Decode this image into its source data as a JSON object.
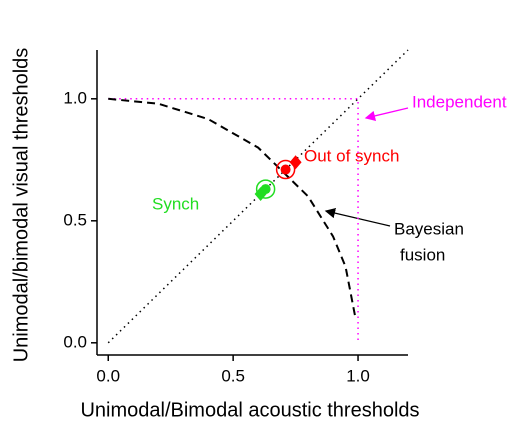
{
  "chart_data": {
    "type": "scatter",
    "xlabel": "Unimodal/Bimodal acoustic thresholds",
    "ylabel": "Unimodal/bimodal visual thresholds",
    "xlim": [
      -0.045,
      1.2
    ],
    "ylim": [
      -0.05,
      1.2
    ],
    "xticks": [
      {
        "value": 0,
        "label": "0.0"
      },
      {
        "value": 0.5,
        "label": "0.5"
      },
      {
        "value": 1,
        "label": "1.0"
      }
    ],
    "yticks": [
      {
        "value": 0,
        "label": "0.0"
      },
      {
        "value": 0.5,
        "label": "0.5"
      },
      {
        "value": 1,
        "label": "1.0"
      }
    ],
    "series": [
      {
        "name": "Synch",
        "color": "#22dd22",
        "kind": "points",
        "markers": [
          "ring",
          "diamond"
        ],
        "x": [
          0.63,
          0.61
        ],
        "y": [
          0.63,
          0.61
        ]
      },
      {
        "name": "Out of synch",
        "color": "#ff0000",
        "kind": "points",
        "markers": [
          "ring",
          "diamond"
        ],
        "x": [
          0.71,
          0.75
        ],
        "y": [
          0.71,
          0.74
        ]
      },
      {
        "kind": "line",
        "style": "dotted",
        "color": "#000000",
        "x": [
          0,
          1.2
        ],
        "y": [
          0,
          1.2
        ]
      },
      {
        "kind": "line",
        "style": "dotted",
        "color": "#ff00ff",
        "x": [
          0,
          1,
          1
        ],
        "y": [
          1,
          1,
          0
        ]
      },
      {
        "kind": "line",
        "style": "dashed",
        "color": "#000000",
        "x": [
          0,
          0.2,
          0.4,
          0.6,
          0.8,
          0.9,
          0.95,
          0.99
        ],
        "y": [
          1,
          0.98,
          0.917,
          0.8,
          0.6,
          0.436,
          0.312,
          0.1
        ]
      }
    ],
    "annotations": [
      {
        "lines": [
          "Independent"
        ]
      },
      {
        "lines": [
          "Bayesian",
          "fusion"
        ]
      }
    ]
  }
}
